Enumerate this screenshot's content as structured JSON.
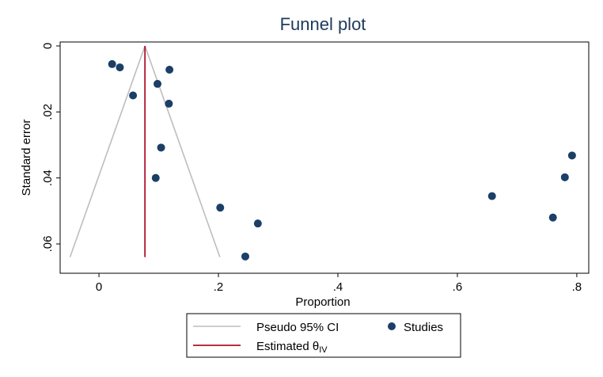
{
  "chart_data": {
    "type": "scatter",
    "title": "Funnel plot",
    "xlabel": "Proportion",
    "ylabel": "Standard error",
    "xlim": [
      -0.065,
      0.82
    ],
    "ylim": [
      0,
      0.066
    ],
    "y_reversed": true,
    "xticks": [
      {
        "value": 0,
        "label": "0"
      },
      {
        "value": 0.2,
        "label": ".2"
      },
      {
        "value": 0.4,
        "label": ".4"
      },
      {
        "value": 0.6,
        "label": ".6"
      },
      {
        "value": 0.8,
        "label": ".8"
      }
    ],
    "yticks": [
      {
        "value": 0,
        "label": "0"
      },
      {
        "value": 0.02,
        "label": ".02"
      },
      {
        "value": 0.04,
        "label": ".04"
      },
      {
        "value": 0.06,
        "label": ".06"
      }
    ],
    "estimate": 0.077,
    "ci_ymax": 0.064,
    "ci_z": 1.96,
    "studies": [
      {
        "x": 0.022,
        "y": 0.0055
      },
      {
        "x": 0.035,
        "y": 0.0065
      },
      {
        "x": 0.118,
        "y": 0.0072
      },
      {
        "x": 0.098,
        "y": 0.0115
      },
      {
        "x": 0.057,
        "y": 0.015
      },
      {
        "x": 0.117,
        "y": 0.0175
      },
      {
        "x": 0.104,
        "y": 0.0308
      },
      {
        "x": 0.095,
        "y": 0.04
      },
      {
        "x": 0.203,
        "y": 0.049
      },
      {
        "x": 0.266,
        "y": 0.0538
      },
      {
        "x": 0.245,
        "y": 0.0638
      },
      {
        "x": 0.658,
        "y": 0.0455
      },
      {
        "x": 0.76,
        "y": 0.052
      },
      {
        "x": 0.78,
        "y": 0.0398
      },
      {
        "x": 0.792,
        "y": 0.0332
      }
    ],
    "legend": {
      "position": "bottom",
      "items": [
        {
          "label": "Pseudo 95% CI",
          "type": "line",
          "color": "#bdbdbd"
        },
        {
          "label": "Studies",
          "type": "marker",
          "color": "#1b3f66"
        },
        {
          "label": "Estimated θ",
          "subscript": "IV",
          "type": "line",
          "color": "#b0102a"
        }
      ]
    },
    "colors": {
      "marker": "#1b3f66",
      "ci_line": "#bdbdbd",
      "estimate_line": "#b0102a",
      "title": "#1e3a5a"
    },
    "grid": false
  }
}
